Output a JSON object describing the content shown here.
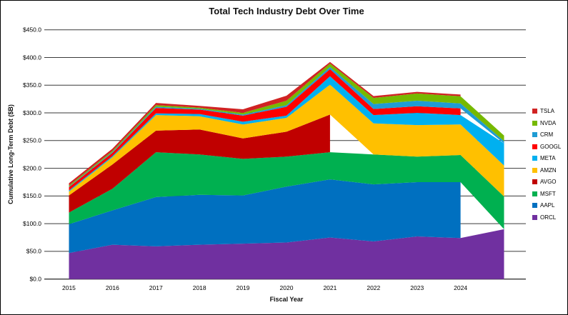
{
  "window": {
    "background": "#ffffff",
    "frame_border_color": "#000000"
  },
  "chart_data": {
    "type": "area",
    "variant": "stacked",
    "title": "Total Tech Industry Debt Over Time",
    "xlabel": "Fiscal Year",
    "ylabel": "Cumulative Long-Term Debt ($B)",
    "ylim": [
      0,
      450
    ],
    "y_tick_step": 50,
    "y_tick_labels": [
      "$0.0",
      "$50.0",
      "$100.0",
      "$150.0",
      "$200.0",
      "$250.0",
      "$300.0",
      "$350.0",
      "$400.0",
      "$450.0"
    ],
    "x_tick_labels": [
      "2015",
      "2016",
      "2017",
      "2018",
      "2019",
      "2020",
      "2021",
      "2022",
      "2023",
      "2024"
    ],
    "categories": [
      "2015",
      "2016",
      "2017",
      "2018",
      "2019",
      "2020",
      "2021",
      "2022",
      "2023",
      "2024",
      ""
    ],
    "grid": "horizontal-on",
    "grid_color": "#3a3a3a",
    "legend_position": "right",
    "legend_order_top_to_bottom": [
      "TSLA",
      "NVDA",
      "CRM",
      "GOOGL",
      "META",
      "AMZN",
      "AVGO",
      "MSFT",
      "AAPL",
      "ORCL"
    ],
    "series": [
      {
        "name": "ORCL",
        "color": "#7030A0",
        "values": [
          47,
          62,
          59,
          62,
          64,
          66,
          75,
          68,
          77,
          74,
          90
        ]
      },
      {
        "name": "AAPL",
        "color": "#0070C0",
        "values": [
          52,
          62,
          89,
          90,
          87,
          101,
          105,
          103,
          98,
          101,
          null
        ]
      },
      {
        "name": "MSFT",
        "color": "#00B050",
        "values": [
          21,
          39,
          81,
          73,
          66,
          54,
          49,
          54,
          46,
          49,
          59
        ]
      },
      {
        "name": "AVGO",
        "color": "#C00000",
        "values": [
          31,
          44,
          39,
          45,
          37,
          45,
          68,
          null,
          null,
          null,
          null
        ]
      },
      {
        "name": "AMZN",
        "color": "#FFC000",
        "values": [
          7,
          13,
          28,
          24,
          25,
          25,
          54,
          56,
          57,
          55,
          56
        ]
      },
      {
        "name": "META",
        "color": "#00B0F0",
        "values": [
          2,
          2,
          3,
          4,
          5,
          4,
          15,
          15,
          22,
          17,
          40
        ]
      },
      {
        "name": "GOOGL",
        "color": "#FF0000",
        "values": [
          6,
          6,
          10,
          8,
          11,
          16,
          13,
          11,
          12,
          12,
          null
        ]
      },
      {
        "name": "CRM",
        "color": "#1F9CD4",
        "values": [
          1,
          1.5,
          2,
          1.5,
          2,
          3,
          4,
          9,
          10,
          9,
          4
        ]
      },
      {
        "name": "NVDA",
        "color": "#76B900",
        "values": [
          2,
          2,
          3,
          2,
          3,
          8,
          6,
          11,
          13,
          13,
          10
        ]
      },
      {
        "name": "TSLA",
        "color": "#D02323",
        "values": [
          4,
          4,
          4,
          3,
          6.5,
          9,
          3,
          3.4,
          3,
          3,
          null
        ]
      }
    ]
  }
}
